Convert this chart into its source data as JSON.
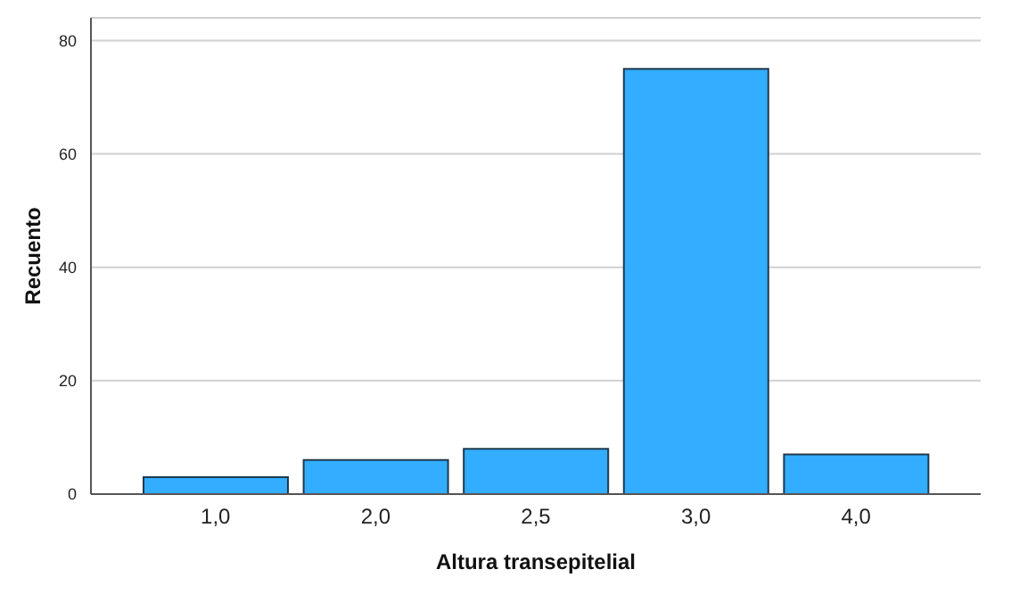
{
  "chart_data": {
    "type": "bar",
    "xlabel": "Altura transepitelial",
    "ylabel": "Recuento",
    "categories": [
      "1,0",
      "2,0",
      "2,5",
      "3,0",
      "4,0"
    ],
    "values": [
      3,
      6,
      8,
      75,
      7
    ],
    "color": "#33adff",
    "ylim": [
      0,
      84
    ],
    "yticks": [
      0,
      20,
      40,
      60,
      80
    ],
    "grid": "y"
  }
}
